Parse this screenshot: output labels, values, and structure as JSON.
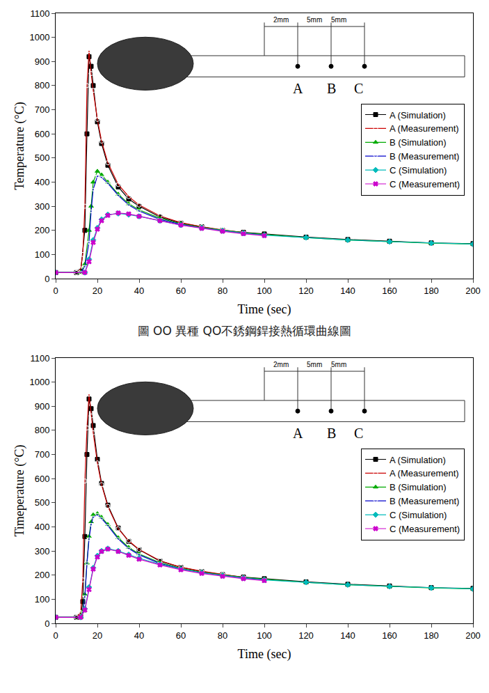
{
  "caption": "圖 OO 異種 QO不銹鋼銲接熱循環曲線圖",
  "chart_data": [
    {
      "type": "line",
      "x_label": "Time (sec)",
      "y_label": "Temperature (°C)",
      "xlim": [
        0,
        200
      ],
      "xticks": [
        0,
        20,
        40,
        60,
        80,
        100,
        120,
        140,
        160,
        180,
        200
      ],
      "ylim": [
        0,
        1100
      ],
      "yticks": [
        0,
        100,
        200,
        300,
        400,
        500,
        600,
        700,
        800,
        900,
        1000,
        1100
      ],
      "legend": "right",
      "grid": false,
      "inset": {
        "dimensions": [
          "2mm",
          "5mm",
          "5mm"
        ],
        "points": [
          "A",
          "B",
          "C"
        ]
      },
      "series": [
        {
          "name": "A (Simulation)",
          "color": "#000000",
          "marker": "square",
          "x": [
            0,
            10,
            12,
            14,
            15,
            16,
            17,
            18,
            20,
            22,
            25,
            30,
            35,
            40,
            50,
            60,
            70,
            80,
            90,
            100,
            120,
            140,
            160,
            180,
            200
          ],
          "values": [
            25,
            25,
            30,
            200,
            600,
            920,
            880,
            800,
            650,
            560,
            470,
            380,
            330,
            300,
            255,
            230,
            215,
            200,
            192,
            185,
            172,
            162,
            155,
            148,
            145
          ]
        },
        {
          "name": "A (Measurement)",
          "color": "#cc0000",
          "marker": "circle-open",
          "x": [
            0,
            10,
            12,
            13,
            14,
            15,
            16,
            17,
            18,
            20,
            22,
            25,
            30,
            35,
            40,
            50,
            60,
            70,
            80,
            90,
            100
          ],
          "values": [
            25,
            25,
            40,
            100,
            300,
            800,
            945,
            850,
            780,
            660,
            570,
            480,
            390,
            340,
            305,
            260,
            232,
            215,
            202,
            190,
            180
          ]
        },
        {
          "name": "B (Simulation)",
          "color": "#00aa00",
          "marker": "triangle-up",
          "x": [
            0,
            12,
            14,
            16,
            17,
            18,
            20,
            22,
            25,
            30,
            35,
            40,
            50,
            60,
            70,
            80,
            90,
            100,
            120,
            140,
            160,
            180,
            200
          ],
          "values": [
            25,
            25,
            60,
            200,
            300,
            400,
            445,
            430,
            400,
            350,
            310,
            285,
            250,
            228,
            212,
            200,
            190,
            183,
            170,
            160,
            153,
            147,
            143
          ]
        },
        {
          "name": "B (Measurement)",
          "color": "#0000cc",
          "marker": "triangle-down-open",
          "x": [
            0,
            12,
            14,
            16,
            17,
            18,
            20,
            22,
            25,
            30,
            35,
            40,
            50,
            60,
            70,
            80,
            90,
            100
          ],
          "values": [
            25,
            25,
            50,
            150,
            280,
            370,
            425,
            420,
            395,
            345,
            305,
            280,
            245,
            225,
            210,
            198,
            188,
            180
          ]
        },
        {
          "name": "C (Simulation)",
          "color": "#00bbbb",
          "marker": "diamond",
          "x": [
            0,
            14,
            16,
            18,
            20,
            22,
            25,
            30,
            35,
            40,
            50,
            60,
            70,
            80,
            90,
            100,
            120,
            140,
            160,
            180,
            200
          ],
          "values": [
            25,
            25,
            80,
            160,
            210,
            245,
            265,
            270,
            265,
            258,
            240,
            222,
            210,
            198,
            188,
            180,
            170,
            160,
            153,
            147,
            143
          ]
        },
        {
          "name": "C (Measurement)",
          "color": "#cc00cc",
          "marker": "x",
          "x": [
            0,
            14,
            16,
            18,
            20,
            22,
            25,
            30,
            35,
            40,
            50,
            60,
            70,
            80,
            90,
            100
          ],
          "values": [
            25,
            25,
            70,
            150,
            205,
            240,
            262,
            272,
            268,
            258,
            240,
            222,
            208,
            196,
            186,
            178
          ]
        }
      ]
    },
    {
      "type": "line",
      "x_label": "Time (sec)",
      "y_label": "Timeperature (°C)",
      "xlim": [
        0,
        200
      ],
      "xticks": [
        0,
        20,
        40,
        60,
        80,
        100,
        120,
        140,
        160,
        180,
        200
      ],
      "ylim": [
        0,
        1100
      ],
      "yticks": [
        0,
        100,
        200,
        300,
        400,
        500,
        600,
        700,
        800,
        900,
        1000,
        1100
      ],
      "legend": "right",
      "grid": false,
      "inset": {
        "dimensions": [
          "2mm",
          "5mm",
          "5mm"
        ],
        "points": [
          "A",
          "B",
          "C"
        ]
      },
      "series": [
        {
          "name": "A (Simulation)",
          "color": "#000000",
          "marker": "square",
          "x": [
            0,
            10,
            12,
            13,
            14,
            15,
            16,
            17,
            18,
            20,
            22,
            25,
            30,
            35,
            40,
            50,
            60,
            70,
            80,
            90,
            100,
            120,
            140,
            160,
            180,
            200
          ],
          "values": [
            25,
            25,
            30,
            90,
            360,
            700,
            930,
            890,
            820,
            680,
            580,
            490,
            395,
            340,
            305,
            258,
            232,
            215,
            202,
            192,
            185,
            172,
            162,
            155,
            148,
            145
          ]
        },
        {
          "name": "A (Measurement)",
          "color": "#cc0000",
          "marker": "circle-open",
          "x": [
            0,
            10,
            12,
            13,
            14,
            15,
            16,
            17,
            18,
            20,
            22,
            25,
            30,
            35,
            40,
            50,
            60,
            70,
            80,
            90,
            100
          ],
          "values": [
            25,
            25,
            45,
            180,
            590,
            810,
            950,
            860,
            790,
            665,
            575,
            485,
            392,
            342,
            306,
            260,
            233,
            216,
            202,
            190,
            181
          ]
        },
        {
          "name": "B (Simulation)",
          "color": "#00aa00",
          "marker": "triangle-up",
          "x": [
            0,
            12,
            13,
            14,
            15,
            16,
            17,
            18,
            20,
            22,
            25,
            30,
            35,
            40,
            50,
            60,
            70,
            80,
            90,
            100,
            120,
            140,
            160,
            180,
            200
          ],
          "values": [
            25,
            25,
            50,
            120,
            250,
            360,
            420,
            450,
            455,
            440,
            410,
            355,
            315,
            288,
            252,
            228,
            212,
            200,
            190,
            183,
            170,
            160,
            153,
            147,
            143
          ]
        },
        {
          "name": "B (Measurement)",
          "color": "#0000cc",
          "marker": "triangle-down-open",
          "x": [
            0,
            12,
            13,
            14,
            15,
            16,
            17,
            18,
            20,
            22,
            25,
            30,
            35,
            40,
            50,
            60,
            70,
            80,
            90,
            100
          ],
          "values": [
            25,
            25,
            45,
            110,
            250,
            350,
            410,
            440,
            450,
            435,
            405,
            350,
            310,
            284,
            248,
            226,
            210,
            198,
            188,
            180
          ]
        },
        {
          "name": "C (Simulation)",
          "color": "#00bbbb",
          "marker": "diamond",
          "x": [
            0,
            12,
            14,
            16,
            18,
            20,
            22,
            25,
            30,
            35,
            40,
            50,
            60,
            70,
            80,
            90,
            100,
            120,
            140,
            160,
            180,
            200
          ],
          "values": [
            25,
            25,
            60,
            150,
            230,
            280,
            300,
            310,
            300,
            285,
            270,
            245,
            225,
            210,
            198,
            188,
            180,
            170,
            160,
            153,
            147,
            143
          ]
        },
        {
          "name": "C (Measurement)",
          "color": "#cc00cc",
          "marker": "x",
          "x": [
            0,
            12,
            14,
            16,
            18,
            20,
            22,
            25,
            30,
            35,
            40,
            50,
            60,
            70,
            80,
            90,
            100
          ],
          "values": [
            25,
            25,
            55,
            140,
            225,
            275,
            298,
            308,
            298,
            282,
            266,
            242,
            222,
            207,
            195,
            185,
            177
          ]
        }
      ]
    }
  ]
}
